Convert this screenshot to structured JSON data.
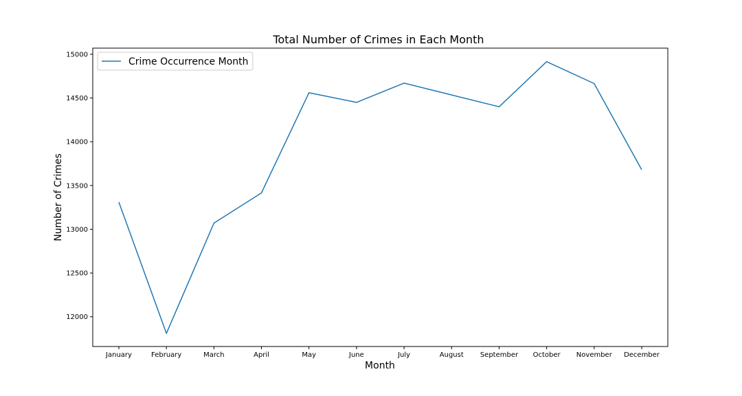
{
  "chart_data": {
    "type": "line",
    "title": "Total Number of Crimes in Each Month",
    "xlabel": "Month",
    "ylabel": "Number of Crimes",
    "categories": [
      "January",
      "February",
      "March",
      "April",
      "May",
      "June",
      "July",
      "August",
      "September",
      "October",
      "November",
      "December"
    ],
    "series": [
      {
        "name": "Crime Occurrence Month",
        "color": "#1f77b4",
        "values": [
          13310,
          11810,
          13070,
          13415,
          14560,
          14450,
          14670,
          14535,
          14400,
          14915,
          14665,
          13680
        ]
      }
    ],
    "ylim": [
      11660,
      15070
    ],
    "yticks": [
      12000,
      12500,
      13000,
      13500,
      14000,
      14500,
      15000
    ],
    "grid": false,
    "legend_position": "top-left"
  }
}
